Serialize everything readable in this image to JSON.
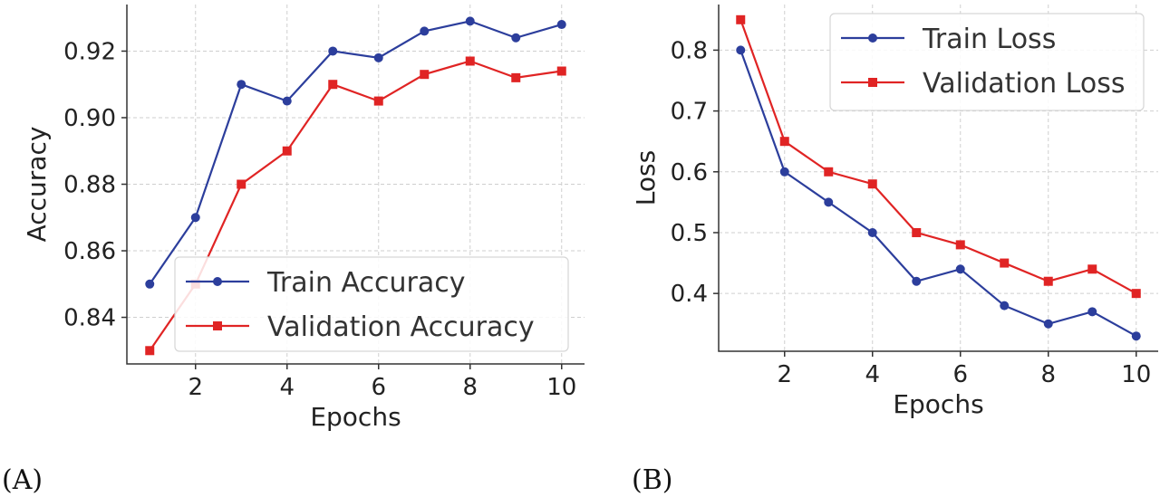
{
  "chart_data": [
    {
      "type": "line",
      "panel_label": "(A)",
      "xlabel": "Epochs",
      "ylabel": "Accuracy",
      "x": [
        1,
        2,
        3,
        4,
        5,
        6,
        7,
        8,
        9,
        10
      ],
      "xlim": [
        0.5,
        10.5
      ],
      "ylim": [
        0.826,
        0.934
      ],
      "xticks": [
        "2",
        "4",
        "6",
        "8",
        "10"
      ],
      "xtick_values": [
        2,
        4,
        6,
        8,
        10
      ],
      "yticks": [
        "0.84",
        "0.86",
        "0.88",
        "0.90",
        "0.92"
      ],
      "ytick_values": [
        0.84,
        0.86,
        0.88,
        0.9,
        0.92
      ],
      "grid": true,
      "legend_position": "bottom-right",
      "series": [
        {
          "name": "Train Accuracy",
          "color": "#2c3e9c",
          "marker": "circle",
          "values": [
            0.85,
            0.87,
            0.91,
            0.905,
            0.92,
            0.918,
            0.926,
            0.929,
            0.924,
            0.928
          ]
        },
        {
          "name": "Validation Accuracy",
          "color": "#e02424",
          "marker": "square",
          "values": [
            0.83,
            0.85,
            0.88,
            0.89,
            0.91,
            0.905,
            0.913,
            0.917,
            0.912,
            0.914
          ]
        }
      ]
    },
    {
      "type": "line",
      "panel_label": "(B)",
      "xlabel": "Epochs",
      "ylabel": "Loss",
      "x": [
        1,
        2,
        3,
        4,
        5,
        6,
        7,
        8,
        9,
        10
      ],
      "xlim": [
        0.5,
        10.5
      ],
      "ylim": [
        0.305,
        0.875
      ],
      "xticks": [
        "2",
        "4",
        "6",
        "8",
        "10"
      ],
      "xtick_values": [
        2,
        4,
        6,
        8,
        10
      ],
      "yticks": [
        "0.4",
        "0.5",
        "0.6",
        "0.7",
        "0.8"
      ],
      "ytick_values": [
        0.4,
        0.5,
        0.6,
        0.7,
        0.8
      ],
      "grid": true,
      "legend_position": "top-right",
      "series": [
        {
          "name": "Train Loss",
          "color": "#2c3e9c",
          "marker": "circle",
          "values": [
            0.8,
            0.6,
            0.55,
            0.5,
            0.42,
            0.44,
            0.38,
            0.35,
            0.37,
            0.33
          ]
        },
        {
          "name": "Validation Loss",
          "color": "#e02424",
          "marker": "square",
          "values": [
            0.85,
            0.65,
            0.6,
            0.58,
            0.5,
            0.48,
            0.45,
            0.42,
            0.44,
            0.4
          ]
        }
      ]
    }
  ]
}
